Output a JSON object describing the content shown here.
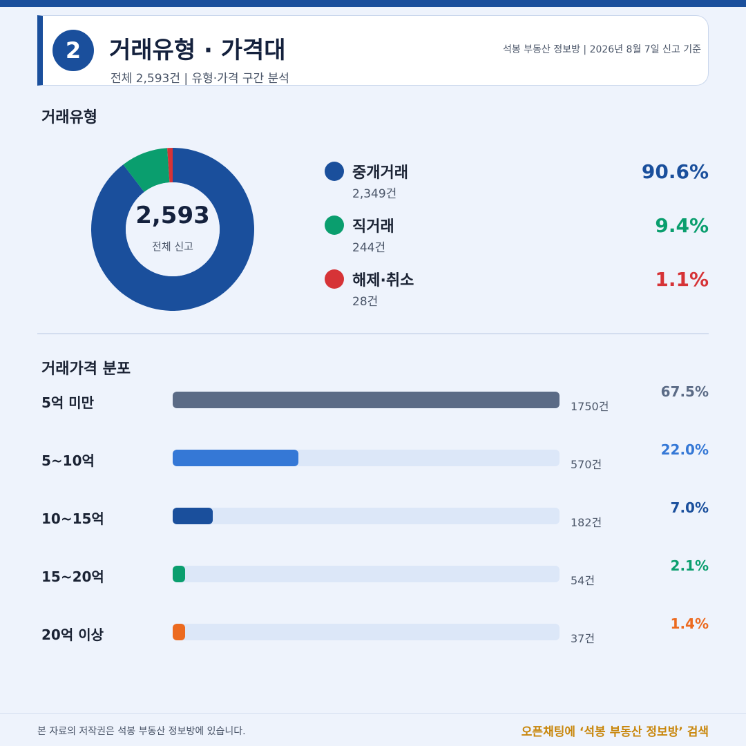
{
  "header": {
    "badge": "2",
    "title": "거래유형 · 가격대",
    "subtitle": "전체 2,593건 | 유형·가격 구간 분석",
    "source": "석봉 부동산 정보방 | 2026년 8월 7일 신고 기준"
  },
  "sections": {
    "type_title": "거래유형",
    "price_title": "거래가격 분포"
  },
  "donut": {
    "total": "2,593",
    "total_label": "전체 신고"
  },
  "chart_data": [
    {
      "type": "pie",
      "title": "거래유형",
      "categories": [
        "중개거래",
        "직거래",
        "해제·취소"
      ],
      "values": [
        2349,
        244,
        28
      ],
      "count_labels": [
        "2,349건",
        "244건",
        "28건"
      ],
      "percent_labels": [
        "90.6%",
        "9.4%",
        "1.1%"
      ],
      "colors": [
        "#1a4f9c",
        "#0a9e6e",
        "#d63337"
      ],
      "center_value": "2,593",
      "center_label": "전체 신고",
      "legend": "right"
    },
    {
      "type": "bar",
      "orientation": "horizontal",
      "title": "거래가격 분포",
      "categories": [
        "5억 미만",
        "5~10억",
        "10~15억",
        "15~20억",
        "20억 이상"
      ],
      "values": [
        1750,
        570,
        182,
        54,
        37
      ],
      "count_labels": [
        "1750건",
        "570건",
        "182건",
        "54건",
        "37건"
      ],
      "percent_labels": [
        "67.5%",
        "22.0%",
        "7.0%",
        "2.1%",
        "1.4%"
      ],
      "colors": [
        "#5b6b86",
        "#3578d6",
        "#1a4f9c",
        "#0a9e6e",
        "#ec6a1f"
      ],
      "xlim": [
        0,
        1750
      ]
    }
  ],
  "footer": {
    "copyright": "본 자료의 저작권은 석봉 부동산 정보방에 있습니다.",
    "cta": "오픈채팅에 ‘석봉 부동산 정보방’ 검색"
  },
  "colors": {
    "primary": "#1a4f9c",
    "background": "#eef3fc",
    "track": "#dce7f8",
    "cta": "#c8860a"
  }
}
